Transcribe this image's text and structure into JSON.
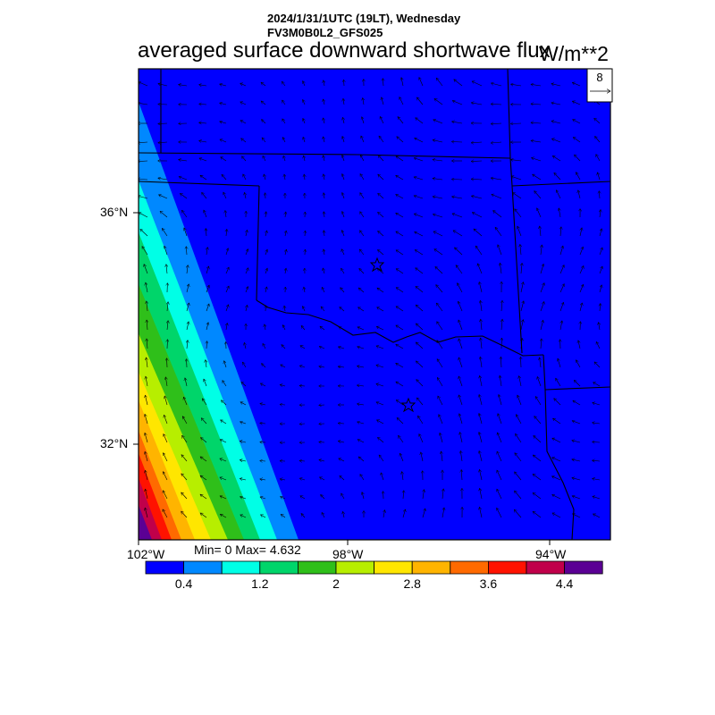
{
  "header": {
    "date_line": "2024/1/31/1UTC (19LT), Wednesday",
    "model_line": "FV3M0B0L2_GFS025"
  },
  "title": "averaged surface downward shortwave flux",
  "units": "W/m**2",
  "map": {
    "lat_labels": [
      "36°N",
      "32°N"
    ],
    "lon_labels": [
      "102°W",
      "98°W",
      "94°W"
    ],
    "vector_ref_label": "8",
    "markers": [
      "star",
      "star"
    ]
  },
  "stats": {
    "text": "Min= 0 Max= 4.632",
    "min": 0,
    "max": 4.632
  },
  "colorbar": {
    "colors": [
      "#0000ff",
      "#0088ff",
      "#00ffe6",
      "#00d56a",
      "#2fbf1a",
      "#b7ee00",
      "#ffe600",
      "#ffb400",
      "#ff6a00",
      "#ff1200",
      "#c0004a",
      "#5b0094"
    ],
    "labels": [
      "0.4",
      "1.2",
      "2",
      "2.8",
      "3.6",
      "4.4"
    ]
  }
}
